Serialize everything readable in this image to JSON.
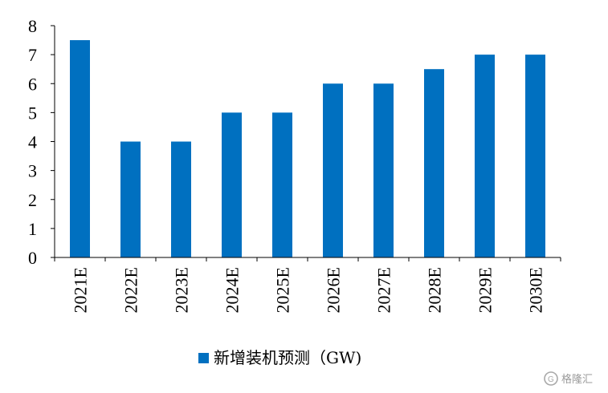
{
  "chart_data": {
    "type": "bar",
    "categories": [
      "2021E",
      "2022E",
      "2023E",
      "2024E",
      "2025E",
      "2026E",
      "2027E",
      "2028E",
      "2029E",
      "2030E"
    ],
    "series": [
      {
        "name": "新增装机预测（GW)",
        "values": [
          7.5,
          4,
          4,
          5,
          5,
          6,
          6,
          6.5,
          7,
          7
        ],
        "color": "#0070C0"
      }
    ],
    "ylim": [
      0,
      8
    ],
    "yticks": [
      "0",
      "1",
      "2",
      "3",
      "4",
      "5",
      "6",
      "7",
      "8"
    ],
    "grid": false,
    "legend_position": "bottom-center"
  },
  "watermark": {
    "text": "格隆汇"
  }
}
